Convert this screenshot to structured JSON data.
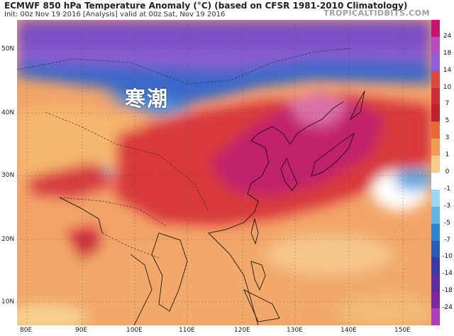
{
  "header": {
    "title": "ECMWF 850 hPa Temperature Anomaly (°C) (based on CFSR 1981-2010 Climatology)",
    "subtitle": "Init: 00z Nov 19 2016   [Analysis]   valid at 00z Sat, Nov 19 2016",
    "source": "TROPICALTIDBITS.COM"
  },
  "map": {
    "annotation": "寒潮",
    "lat_labels": [
      "50N",
      "40N",
      "30N",
      "20N",
      "10N"
    ],
    "lon_labels": [
      "80E",
      "90E",
      "100E",
      "110E",
      "120E",
      "130E",
      "140E",
      "150E"
    ]
  },
  "colorbar": {
    "labels": [
      "24",
      "18",
      "14",
      "10",
      "7",
      "5",
      "3",
      "1",
      "0",
      "-1",
      "-3",
      "-5",
      "-7",
      "-10",
      "-14",
      "-18",
      "-24"
    ],
    "colors": [
      "#c8146e",
      "#b84cc0",
      "#8f5fd6",
      "#e0483c",
      "#ce2a38",
      "#c21e2e",
      "#e8683a",
      "#f09a52",
      "#f7c98a",
      "#ffffff",
      "#9cd6ef",
      "#63b3e4",
      "#2f86cf",
      "#2a5bb8",
      "#3a3aa8",
      "#5b2ea0",
      "#7a2a9e",
      "#b03cb8"
    ]
  }
}
